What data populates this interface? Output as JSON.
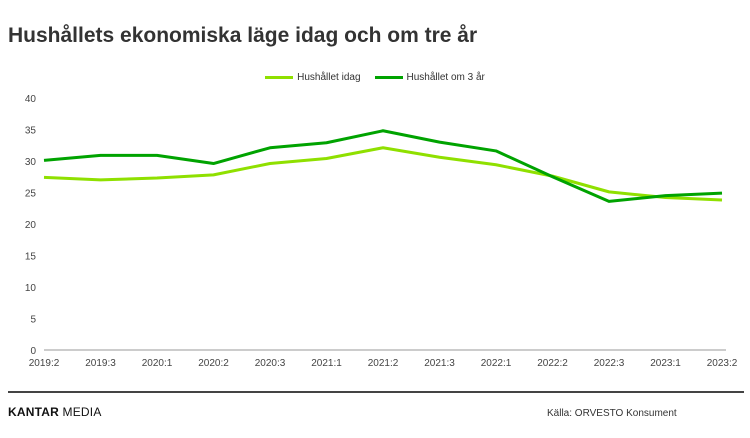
{
  "title": "Hushållets ekonomiska läge idag och om tre år",
  "footer": {
    "logo_bold": "KANTAR",
    "logo_rest": " MEDIA",
    "source": "Källa: ORVESTO Konsument"
  },
  "chart_data": {
    "type": "line",
    "title": "Hushållets ekonomiska läge idag och om tre år",
    "xlabel": "",
    "ylabel": "",
    "categories": [
      "2019:2",
      "2019:3",
      "2020:1",
      "2020:2",
      "2020:3",
      "2021:1",
      "2021:2",
      "2021:3",
      "2022:1",
      "2022:2",
      "2022:3",
      "2023:1",
      "2023:2"
    ],
    "ylim": [
      0,
      40
    ],
    "yticks": [
      0,
      5,
      10,
      15,
      20,
      25,
      30,
      35,
      40
    ],
    "grid": false,
    "legend": "top-center",
    "series": [
      {
        "name": "Hushållet idag",
        "color": "#8fe000",
        "values": [
          27.4,
          27.0,
          27.3,
          27.8,
          29.6,
          30.4,
          32.1,
          30.6,
          29.4,
          27.6,
          25.1,
          24.2,
          23.8
        ]
      },
      {
        "name": "Hushållet om 3 år",
        "color": "#00a300",
        "values": [
          30.1,
          30.9,
          30.9,
          29.6,
          32.1,
          32.9,
          34.8,
          33.0,
          31.6,
          27.5,
          23.6,
          24.5,
          24.9
        ]
      }
    ]
  }
}
